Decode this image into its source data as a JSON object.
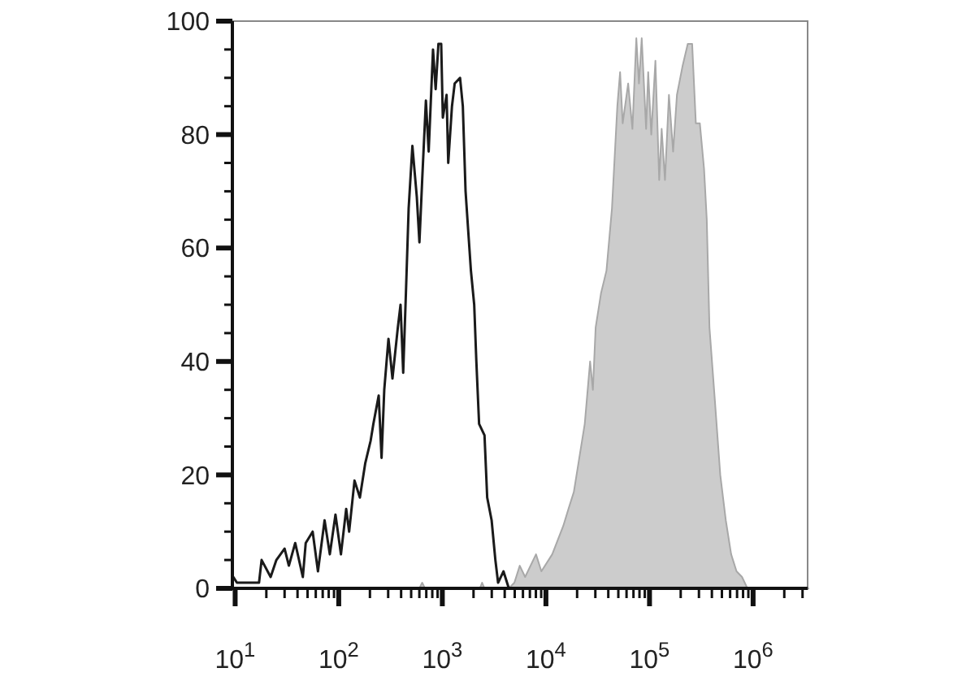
{
  "chart_data": {
    "type": "line",
    "log": "x",
    "xlim": [
      9.4,
      3360000
    ],
    "ylim": [
      0,
      100
    ],
    "xticks": [
      {
        "value": 10,
        "label": "10$^{1}$"
      },
      {
        "value": 20,
        "label": null
      },
      {
        "value": 30,
        "label": null
      },
      {
        "value": 40,
        "label": null
      },
      {
        "value": 50,
        "label": null
      },
      {
        "value": 60,
        "label": null
      },
      {
        "value": 70,
        "label": null
      },
      {
        "value": 80,
        "label": null
      },
      {
        "value": 90,
        "label": null
      },
      {
        "value": 100,
        "label": "10$^{2}$"
      },
      {
        "value": 200,
        "label": null
      },
      {
        "value": 300,
        "label": null
      },
      {
        "value": 400,
        "label": null
      },
      {
        "value": 500,
        "label": null
      },
      {
        "value": 600,
        "label": null
      },
      {
        "value": 700,
        "label": null
      },
      {
        "value": 800,
        "label": null
      },
      {
        "value": 900,
        "label": null
      },
      {
        "value": 1000,
        "label": "10$^{3}$"
      },
      {
        "value": 2000,
        "label": null
      },
      {
        "value": 3000,
        "label": null
      },
      {
        "value": 4000,
        "label": null
      },
      {
        "value": 5000,
        "label": null
      },
      {
        "value": 6000,
        "label": null
      },
      {
        "value": 7000,
        "label": null
      },
      {
        "value": 8000,
        "label": null
      },
      {
        "value": 9000,
        "label": null
      },
      {
        "value": 10000,
        "label": "10$^{4}$"
      },
      {
        "value": 20000,
        "label": null
      },
      {
        "value": 30000,
        "label": null
      },
      {
        "value": 40000,
        "label": null
      },
      {
        "value": 50000,
        "label": null
      },
      {
        "value": 60000,
        "label": null
      },
      {
        "value": 70000,
        "label": null
      },
      {
        "value": 80000,
        "label": null
      },
      {
        "value": 90000,
        "label": null
      },
      {
        "value": 100000,
        "label": "10$^{5}$"
      },
      {
        "value": 200000,
        "label": null
      },
      {
        "value": 300000,
        "label": null
      },
      {
        "value": 400000,
        "label": null
      },
      {
        "value": 500000,
        "label": null
      },
      {
        "value": 600000,
        "label": null
      },
      {
        "value": 700000,
        "label": null
      },
      {
        "value": 800000,
        "label": null
      },
      {
        "value": 900000,
        "label": null
      },
      {
        "value": 1000000,
        "label": "10$^{6}$"
      },
      {
        "value": 2000000,
        "label": null
      },
      {
        "value": 3000000,
        "label": null
      }
    ],
    "yticks": [
      0,
      {
        "value": 5,
        "label": null
      },
      {
        "value": 10,
        "label": null
      },
      {
        "value": 15,
        "label": null
      },
      20,
      {
        "value": 25,
        "label": null
      },
      {
        "value": 30,
        "label": null
      },
      {
        "value": 35,
        "label": null
      },
      40,
      {
        "value": 45,
        "label": null
      },
      {
        "value": 50,
        "label": null
      },
      {
        "value": 55,
        "label": null
      },
      60,
      {
        "value": 65,
        "label": null
      },
      {
        "value": 70,
        "label": null
      },
      {
        "value": 75,
        "label": null
      },
      80,
      {
        "value": 85,
        "label": null
      },
      {
        "value": 90,
        "label": null
      },
      {
        "value": 95,
        "label": null
      },
      100
    ],
    "series": [
      {
        "type": "area",
        "color": "#cccccc",
        "x": [
          9.6,
          600,
          639,
          680,
          2300,
          2420,
          2550,
          4385,
          4960,
          5590,
          6300,
          8020,
          9040,
          11500,
          14700,
          16500,
          18600,
          21000,
          23700,
          26700,
          28400,
          30200,
          34000,
          38400,
          43400,
          48900,
          52000,
          55100,
          62200,
          68400,
          74600,
          79100,
          84100,
          92700,
          97100,
          104000,
          114000,
          124000,
          131000,
          141000,
          154000,
          169000,
          184000,
          208000,
          234000,
          258000,
          280000,
          306000,
          336000,
          357000,
          379000,
          428000,
          482000,
          545000,
          614000,
          692000,
          782000,
          881000,
          3360000
        ],
        "values": [
          0,
          0,
          1,
          0,
          0,
          1,
          0,
          0,
          1,
          4,
          2,
          6,
          3,
          6,
          11,
          14,
          17,
          23,
          29,
          40,
          35,
          46,
          52,
          56,
          67,
          85,
          91,
          82,
          89,
          81,
          97,
          89,
          97,
          81,
          91,
          80,
          93,
          72,
          81,
          72,
          87,
          77,
          87,
          92,
          96,
          96,
          82,
          82,
          74,
          65,
          46,
          33,
          20,
          12,
          6,
          3,
          2,
          0,
          0
        ]
      },
      {
        "color": "#1a1a1a",
        "x": [
          9.6,
          10.4,
          17,
          18,
          22,
          25,
          30,
          33,
          38,
          45,
          48,
          56,
          63,
          73,
          82,
          93,
          105,
          118,
          126,
          142,
          160,
          180,
          203,
          216,
          243,
          259,
          275,
          302,
          330,
          372,
          395,
          419,
          445,
          473,
          514,
          567,
          601,
          639,
          694,
          738,
          813,
          862,
          917,
          975,
          1011,
          1099,
          1140,
          1239,
          1316,
          1483,
          1577,
          1676,
          1778,
          1888,
          2031,
          2130,
          2264,
          2553,
          2711,
          2991,
          3251,
          3453,
          3892,
          4385,
          3360000
        ],
        "values": [
          2,
          1,
          1,
          5,
          2,
          5,
          7,
          4,
          8,
          2,
          8,
          10,
          3,
          12,
          6,
          13,
          6,
          14,
          10,
          19,
          16,
          22,
          26,
          29,
          34,
          23,
          35,
          44,
          37,
          46,
          50,
          38,
          52,
          67,
          78,
          69,
          61,
          72,
          86,
          77,
          95,
          88,
          96,
          96,
          83,
          87,
          75,
          85,
          89,
          90,
          85,
          70,
          63,
          56,
          50,
          40,
          29,
          27,
          16,
          12,
          5,
          1,
          3,
          0,
          0
        ]
      }
    ]
  }
}
